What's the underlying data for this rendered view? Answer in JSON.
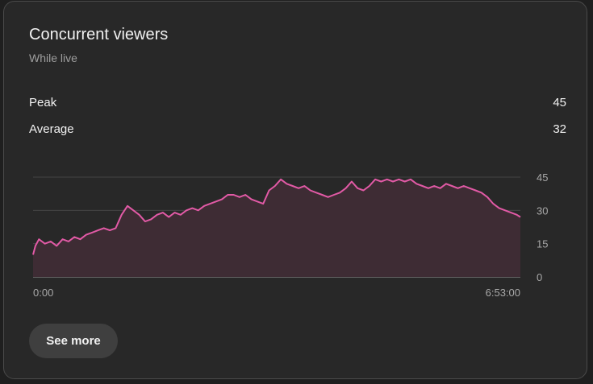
{
  "card": {
    "title": "Concurrent viewers",
    "subtitle": "While live"
  },
  "stats": [
    {
      "label": "Peak",
      "value": "45"
    },
    {
      "label": "Average",
      "value": "32"
    }
  ],
  "chart_data": {
    "type": "area",
    "title": "",
    "xlabel": "",
    "ylabel": "",
    "x_tick_labels": [
      "0:00",
      "6:53:00"
    ],
    "y_ticks": [
      0,
      15,
      30,
      45
    ],
    "ylim": [
      0,
      45
    ],
    "xlim_seconds": [
      0,
      24780
    ],
    "grid": true,
    "series": [
      {
        "color": "#e25aa6",
        "fill": "#3e2c34",
        "x_seconds": [
          0,
          120,
          300,
          600,
          900,
          1200,
          1500,
          1800,
          2100,
          2400,
          2700,
          3000,
          3300,
          3600,
          3900,
          4200,
          4500,
          4800,
          5100,
          5400,
          5700,
          6000,
          6300,
          6600,
          6900,
          7200,
          7500,
          7800,
          8100,
          8400,
          8700,
          9000,
          9300,
          9600,
          9900,
          10200,
          10500,
          10800,
          11100,
          11400,
          11700,
          12000,
          12300,
          12600,
          12900,
          13200,
          13500,
          13800,
          14100,
          14400,
          14700,
          15000,
          15300,
          15600,
          15900,
          16200,
          16500,
          16800,
          17100,
          17400,
          17700,
          18000,
          18300,
          18600,
          18900,
          19200,
          19500,
          19800,
          20100,
          20400,
          20700,
          21000,
          21300,
          21600,
          21900,
          22200,
          22500,
          22800,
          23100,
          23400,
          23700,
          24000,
          24300,
          24600,
          24780
        ],
        "values": [
          10,
          14,
          17,
          15,
          16,
          14,
          17,
          16,
          18,
          17,
          19,
          20,
          21,
          22,
          21,
          22,
          28,
          32,
          30,
          28,
          25,
          26,
          28,
          29,
          27,
          29,
          28,
          30,
          31,
          30,
          32,
          33,
          34,
          35,
          37,
          37,
          36,
          37,
          35,
          34,
          33,
          39,
          41,
          44,
          42,
          41,
          40,
          41,
          39,
          38,
          37,
          36,
          37,
          38,
          40,
          43,
          40,
          39,
          41,
          44,
          43,
          44,
          43,
          44,
          43,
          44,
          42,
          41,
          40,
          41,
          40,
          42,
          41,
          40,
          41,
          40,
          39,
          38,
          36,
          33,
          31,
          30,
          29,
          28,
          27
        ]
      }
    ]
  },
  "actions": {
    "see_more_label": "See more"
  }
}
